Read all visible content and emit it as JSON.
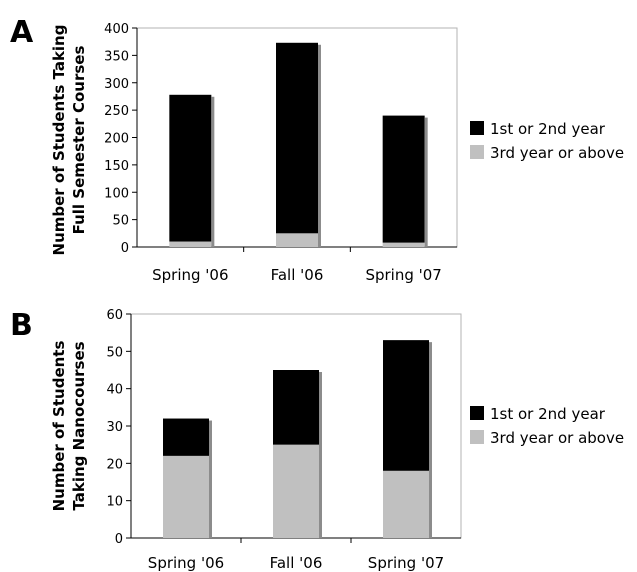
{
  "chart_data": [
    {
      "panel_label": "A",
      "type": "bar",
      "stacked": true,
      "categories": [
        "Spring '06",
        "Fall '06",
        "Spring '07"
      ],
      "series": [
        {
          "name": "3rd year or above",
          "values": [
            10,
            25,
            8
          ],
          "color": "#c0c0c0"
        },
        {
          "name": "1st or 2nd year",
          "values": [
            268,
            348,
            232
          ],
          "color": "#000000"
        }
      ],
      "ylabel_lines": [
        "Number of Students Taking",
        "Full Semester Courses"
      ],
      "ylim": [
        0,
        400
      ],
      "yticks": [
        0,
        50,
        100,
        150,
        200,
        250,
        300,
        350,
        400
      ],
      "legend": [
        "1st or 2nd year",
        "3rd year or above"
      ],
      "legend_position": "right",
      "grid": false
    },
    {
      "panel_label": "B",
      "type": "bar",
      "stacked": true,
      "categories": [
        "Spring '06",
        "Fall '06",
        "Spring '07"
      ],
      "series": [
        {
          "name": "3rd year or above",
          "values": [
            22,
            25,
            18
          ],
          "color": "#c0c0c0"
        },
        {
          "name": "1st or 2nd year",
          "values": [
            10,
            20,
            35
          ],
          "color": "#000000"
        }
      ],
      "ylabel_lines": [
        "Number of Students",
        "Taking Nanocourses"
      ],
      "ylim": [
        0,
        60
      ],
      "yticks": [
        0,
        10,
        20,
        30,
        40,
        50,
        60
      ],
      "legend": [
        "1st or 2nd year",
        "3rd year or above"
      ],
      "legend_position": "right",
      "grid": false
    }
  ]
}
